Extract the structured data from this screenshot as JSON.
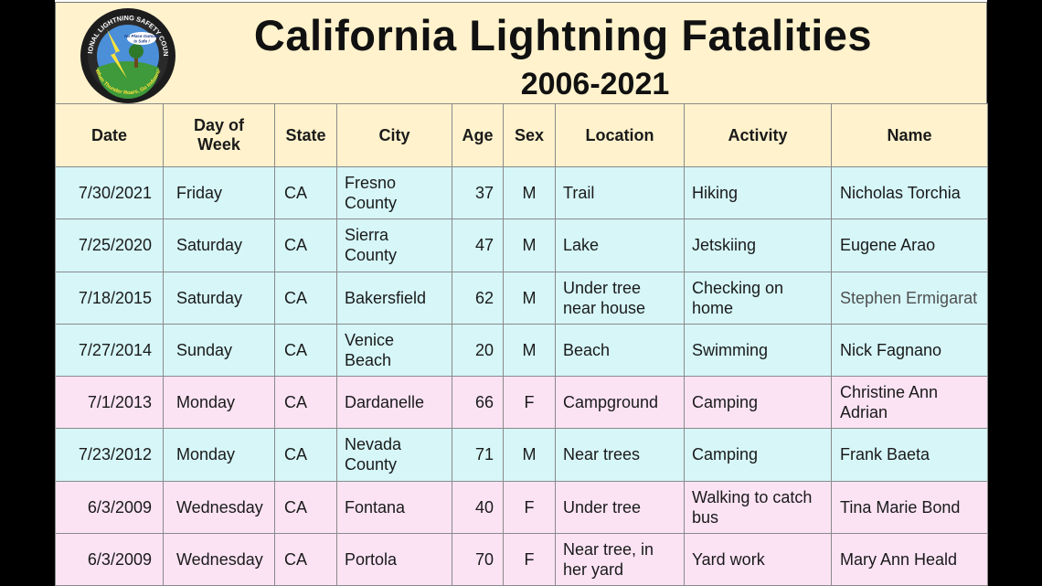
{
  "header": {
    "title": "California Lightning Fatalities",
    "years": "2006-2021",
    "logo_text_top": "NATIONAL LIGHTNING SAFETY COUNCIL",
    "logo_text_center": "No Place Outside Is Safe!",
    "logo_text_bottom": "When Thunder Roars, Go Indoors!"
  },
  "colors": {
    "header_bg": "#fff2cc",
    "male_row_bg": "#d6f6f8",
    "female_row_bg": "#fbe3f4"
  },
  "columns": [
    "Date",
    "Day of Week",
    "State",
    "City",
    "Age",
    "Sex",
    "Location",
    "Activity",
    "Name"
  ],
  "rows": [
    {
      "date": "7/30/2021",
      "day": "Friday",
      "state": "CA",
      "city": "Fresno County",
      "age": "37",
      "sex": "M",
      "location": "Trail",
      "activity": "Hiking",
      "name": "Nicholas Torchia"
    },
    {
      "date": "7/25/2020",
      "day": "Saturday",
      "state": "CA",
      "city": "Sierra County",
      "age": "47",
      "sex": "M",
      "location": "Lake",
      "activity": "Jetskiing",
      "name": "Eugene Arao"
    },
    {
      "date": "7/18/2015",
      "day": "Saturday",
      "state": "CA",
      "city": "Bakersfield",
      "age": "62",
      "sex": "M",
      "location": "Under tree near house",
      "activity": "Checking on home",
      "name": "Stephen Ermigarat"
    },
    {
      "date": "7/27/2014",
      "day": "Sunday",
      "state": "CA",
      "city": "Venice Beach",
      "age": "20",
      "sex": "M",
      "location": "Beach",
      "activity": "Swimming",
      "name": "Nick Fagnano"
    },
    {
      "date": "7/1/2013",
      "day": "Monday",
      "state": "CA",
      "city": "Dardanelle",
      "age": "66",
      "sex": "F",
      "location": "Campground",
      "activity": "Camping",
      "name": "Christine Ann Adrian"
    },
    {
      "date": "7/23/2012",
      "day": "Monday",
      "state": "CA",
      "city": "Nevada County",
      "age": "71",
      "sex": "M",
      "location": "Near trees",
      "activity": "Camping",
      "name": "Frank Baeta"
    },
    {
      "date": "6/3/2009",
      "day": "Wednesday",
      "state": "CA",
      "city": "Fontana",
      "age": "40",
      "sex": "F",
      "location": "Under tree",
      "activity": "Walking to catch bus",
      "name": "Tina Marie Bond"
    },
    {
      "date": "6/3/2009",
      "day": "Wednesday",
      "state": "CA",
      "city": "Portola",
      "age": "70",
      "sex": "F",
      "location": "Near tree, in her yard",
      "activity": "Yard work",
      "name": "Mary Ann Heald"
    }
  ]
}
